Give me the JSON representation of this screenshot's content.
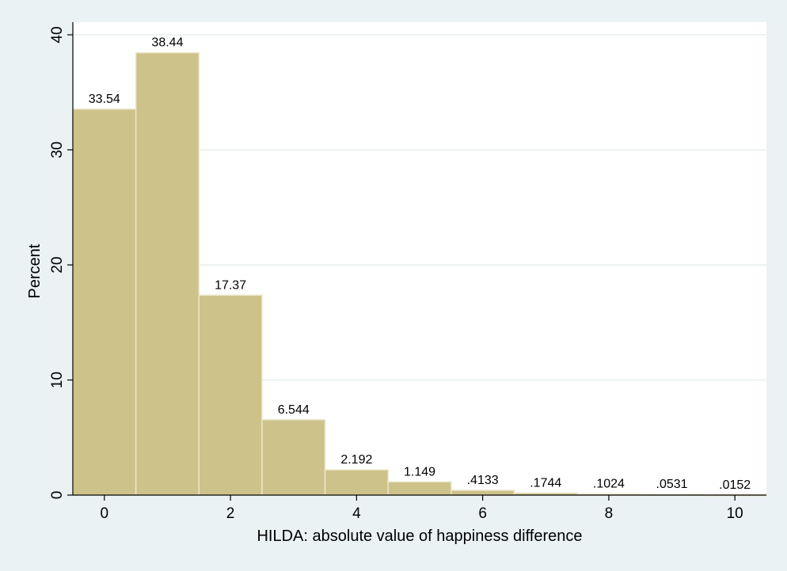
{
  "chart_data": {
    "type": "bar",
    "histogram": true,
    "xlabel": "HILDA: absolute  value of happiness difference",
    "ylabel": "Percent",
    "categories": [
      0,
      1,
      2,
      3,
      4,
      5,
      6,
      7,
      8,
      9,
      10
    ],
    "values": [
      33.54,
      38.44,
      17.37,
      6.544,
      2.192,
      1.149,
      0.4133,
      0.1744,
      0.1024,
      0.0531,
      0.0152
    ],
    "value_labels": [
      "33.54",
      "38.44",
      "17.37",
      "6.544",
      "2.192",
      "1.149",
      ".4133",
      ".1744",
      ".1024",
      ".0531",
      ".0152"
    ],
    "xlim": [
      -0.5,
      10.5
    ],
    "ylim": [
      0,
      40
    ],
    "xticks": [
      0,
      2,
      4,
      6,
      8,
      10
    ],
    "yticks": [
      0,
      10,
      20,
      30,
      40
    ],
    "grid": true,
    "bar_color": "#cdc28a",
    "bar_edge_color": "#ebe6c8",
    "plot_background": "#ffffff",
    "outer_background": "#eaf2f3",
    "grid_color": "#e2ece9"
  }
}
